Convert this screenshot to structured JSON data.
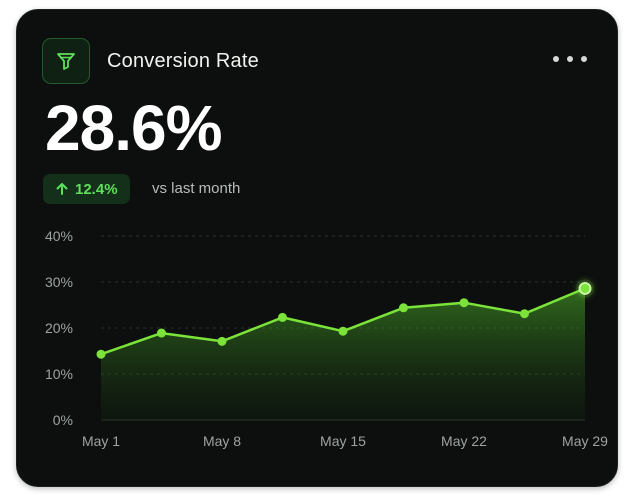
{
  "card": {
    "title": "Conversion Rate",
    "value": "28.6%",
    "change": "12.4%",
    "comparison": "vs last month",
    "icon": "funnel-icon",
    "menu_icon": "more-horizontal-icon"
  },
  "colors": {
    "accent": "#7be33a",
    "badge_text": "#5ee05a",
    "background": "#0c0f0d"
  },
  "chart_data": {
    "type": "area",
    "x": [
      "May 1",
      "May 5",
      "May 8",
      "May 12",
      "May 15",
      "May 19",
      "May 22",
      "May 26",
      "May 29"
    ],
    "values": [
      14.3,
      18.9,
      17.1,
      22.3,
      19.3,
      24.4,
      25.5,
      23.1,
      28.6
    ],
    "xticks": [
      "May 1",
      "May 8",
      "May 15",
      "May 22",
      "May 29"
    ],
    "yticks": [
      "0%",
      "10%",
      "20%",
      "30%",
      "40%"
    ],
    "ylim": [
      0,
      40
    ],
    "grid": "horizontal dashed",
    "highlight_last_point": true
  }
}
